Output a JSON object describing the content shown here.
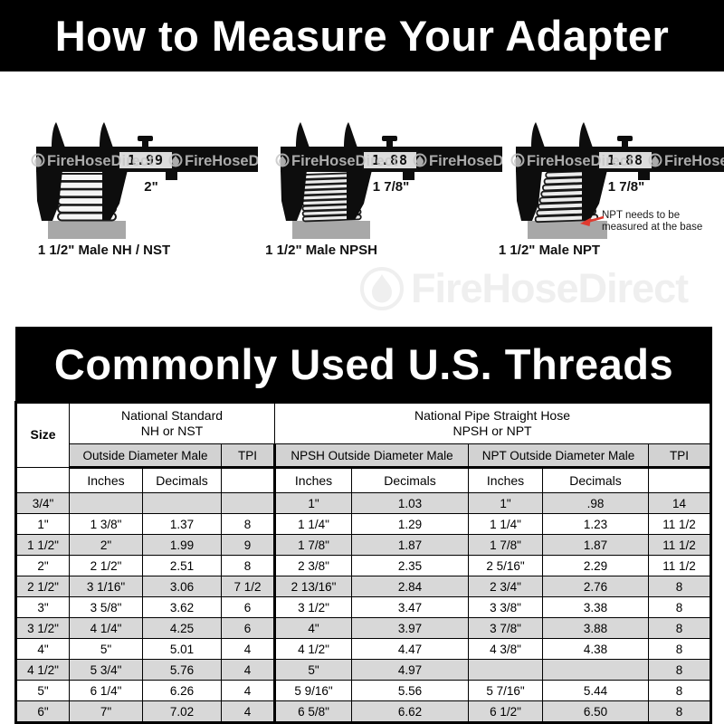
{
  "top_banner": {
    "text": "How to Measure Your Adapter"
  },
  "section_banner": {
    "text": "Commonly Used U.S. Threads"
  },
  "watermark": {
    "band_text": "FireHoseDirect",
    "logo_text": "FireHoseDirect",
    "band_color": "#c7c7c7",
    "logo_color": "#efefef"
  },
  "figures": [
    {
      "caption": "1 1/2\" Male NH / NST",
      "reading": "1.99",
      "size_label": "2\""
    },
    {
      "caption": "1 1/2\" Male NPSH",
      "reading": "1.88",
      "size_label": "1 7/8\""
    },
    {
      "caption": "1 1/2\" Male NPT",
      "reading": "1.88",
      "size_label": "1 7/8\"",
      "annotation": {
        "line1": "NPT needs to be",
        "line2": "measured at the base",
        "arrow_color": "#e03a2f"
      }
    }
  ],
  "table": {
    "header": {
      "size": "Size",
      "nh_line1": "National Standard",
      "nh_line2": "NH or NST",
      "np_line1": "National Pipe Straight Hose",
      "np_line2": "NPSH or NPT",
      "od_male": "Outside Diameter Male",
      "tpi": "TPI",
      "npsh_od": "NPSH Outside Diameter Male",
      "npt_od": "NPT Outside Diameter Male",
      "tpi2": "TPI",
      "inches": "Inches",
      "decimals": "Decimals"
    },
    "rows": [
      [
        "3/4\"",
        "",
        "",
        "",
        "1\"",
        "1.03",
        "1\"",
        ".98",
        "14"
      ],
      [
        "1\"",
        "1 3/8\"",
        "1.37",
        "8",
        "1 1/4\"",
        "1.29",
        "1 1/4\"",
        "1.23",
        "11 1/2"
      ],
      [
        "1 1/2\"",
        "2\"",
        "1.99",
        "9",
        "1 7/8\"",
        "1.87",
        "1 7/8\"",
        "1.87",
        "11 1/2"
      ],
      [
        "2\"",
        "2 1/2\"",
        "2.51",
        "8",
        "2 3/8\"",
        "2.35",
        "2 5/16\"",
        "2.29",
        "11 1/2"
      ],
      [
        "2 1/2\"",
        "3 1/16\"",
        "3.06",
        "7 1/2",
        "2 13/16\"",
        "2.84",
        "2 3/4\"",
        "2.76",
        "8"
      ],
      [
        "3\"",
        "3 5/8\"",
        "3.62",
        "6",
        "3 1/2\"",
        "3.47",
        "3 3/8\"",
        "3.38",
        "8"
      ],
      [
        "3 1/2\"",
        "4 1/4\"",
        "4.25",
        "6",
        "4\"",
        "3.97",
        "3 7/8\"",
        "3.88",
        "8"
      ],
      [
        "4\"",
        "5\"",
        "5.01",
        "4",
        "4 1/2\"",
        "4.47",
        "4 3/8\"",
        "4.38",
        "8"
      ],
      [
        "4 1/2\"",
        "5 3/4\"",
        "5.76",
        "4",
        "5\"",
        "4.97",
        "",
        "",
        "8"
      ],
      [
        "5\"",
        "6 1/4\"",
        "6.26",
        "4",
        "5 9/16\"",
        "5.56",
        "5 7/16\"",
        "5.44",
        "8"
      ],
      [
        "6\"",
        "7\"",
        "7.02",
        "4",
        "6 5/8\"",
        "6.62",
        "6 1/2\"",
        "6.50",
        "8"
      ]
    ]
  }
}
